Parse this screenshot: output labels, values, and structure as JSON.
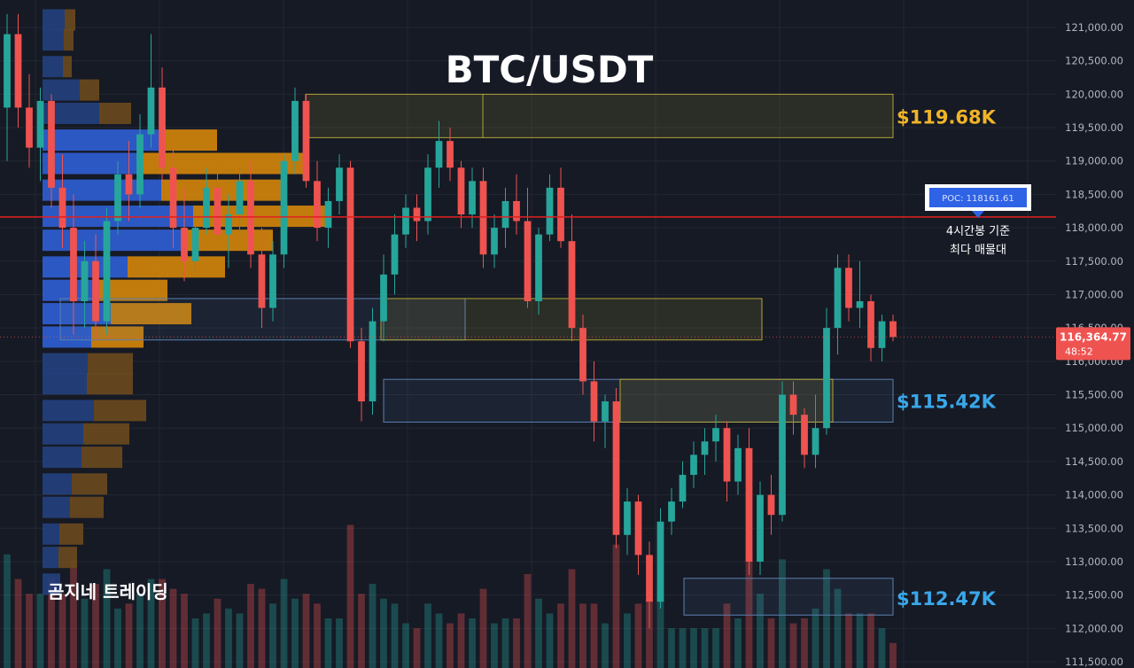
{
  "title": "BTC/USDT",
  "watermark": "곰지네 트레이딩",
  "colors": {
    "background": "#161a25",
    "up": "#26a69a",
    "down": "#ef5350",
    "grid": "#232733",
    "axis_text": "#b2b5be",
    "poc_line": "#e02020",
    "vp_blue": "#2f5fd6",
    "vp_blue_dim": "#24407e",
    "vp_orange": "#d4860b",
    "vp_orange_dim": "#6a4a1e",
    "zone_yellow": "#b3a336",
    "zone_blue": "#5a7fae",
    "label_gold": "#f0b428",
    "label_blue": "#3aa7ea"
  },
  "axis": {
    "ticks": [
      "121,000.00",
      "120,500.00",
      "120,000.00",
      "119,500.00",
      "119,000.00",
      "118,500.00",
      "118,000.00",
      "117,500.00",
      "117,000.00",
      "116,500.00",
      "116,000.00",
      "115,500.00",
      "115,000.00",
      "114,500.00",
      "114,000.00",
      "113,500.00",
      "113,000.00",
      "112,500.00",
      "112,000.00",
      "111,500.00"
    ]
  },
  "price_tag": {
    "price": "116,364.77",
    "countdown": "48:52"
  },
  "poc": {
    "label": "POC: 118161.61",
    "note_line1": "4시간봉 기준",
    "note_line2": "최다 매물대"
  },
  "levels": [
    {
      "text": "$119.68K",
      "color_key": "label_gold"
    },
    {
      "text": "$115.42K",
      "color_key": "label_blue"
    },
    {
      "text": "$112.47K",
      "color_key": "label_blue"
    }
  ],
  "chart_data": {
    "type": "candlestick",
    "symbol": "BTC/USDT",
    "y_range": [
      111500,
      121200
    ],
    "last_price": 116364.77,
    "poc_price": 118161.61,
    "price_levels": [
      119680,
      115420,
      112470
    ],
    "zones": [
      {
        "kind": "supply",
        "price_low": 119350,
        "price_high": 120000
      },
      {
        "kind": "demand",
        "price_low": 116320,
        "price_high": 116940
      },
      {
        "kind": "supply",
        "price_low": 116320,
        "price_high": 116940
      },
      {
        "kind": "demand",
        "price_low": 115090,
        "price_high": 115730
      },
      {
        "kind": "supply",
        "price_low": 115090,
        "price_high": 115730
      },
      {
        "kind": "demand",
        "price_low": 112200,
        "price_high": 112750
      }
    ],
    "volume_profile": [
      {
        "price": 121100,
        "buy": 250,
        "sell": 120
      },
      {
        "price": 120800,
        "buy": 240,
        "sell": 110
      },
      {
        "price": 120400,
        "buy": 230,
        "sell": 100
      },
      {
        "price": 120050,
        "buy": 420,
        "sell": 220
      },
      {
        "price": 119700,
        "buy": 640,
        "sell": 360
      },
      {
        "price": 119300,
        "buy": 1330,
        "sell": 640
      },
      {
        "price": 118950,
        "buy": 1070,
        "sell": 1900
      },
      {
        "price": 118550,
        "buy": 1340,
        "sell": 1350
      },
      {
        "price": 118160,
        "buy": 1700,
        "sell": 1500
      },
      {
        "price": 117800,
        "buy": 1600,
        "sell": 1000
      },
      {
        "price": 117400,
        "buy": 960,
        "sell": 1100
      },
      {
        "price": 117050,
        "buy": 640,
        "sell": 770
      },
      {
        "price": 116700,
        "buy": 770,
        "sell": 910
      },
      {
        "price": 116350,
        "buy": 550,
        "sell": 590
      },
      {
        "price": 115950,
        "buy": 510,
        "sell": 510
      },
      {
        "price": 115650,
        "buy": 500,
        "sell": 520
      },
      {
        "price": 115250,
        "buy": 580,
        "sell": 590
      },
      {
        "price": 114900,
        "buy": 460,
        "sell": 520
      },
      {
        "price": 114550,
        "buy": 440,
        "sell": 460
      },
      {
        "price": 114150,
        "buy": 330,
        "sell": 400
      },
      {
        "price": 113800,
        "buy": 310,
        "sell": 380
      },
      {
        "price": 113400,
        "buy": 190,
        "sell": 270
      },
      {
        "price": 113050,
        "buy": 180,
        "sell": 210
      },
      {
        "price": 112650,
        "buy": 200,
        "sell": 0
      }
    ],
    "candles": [
      {
        "o": 119800,
        "h": 121200,
        "l": 119000,
        "c": 120900
      },
      {
        "o": 120900,
        "h": 121200,
        "l": 119500,
        "c": 119800
      },
      {
        "o": 119800,
        "h": 120300,
        "l": 118900,
        "c": 119200
      },
      {
        "o": 119200,
        "h": 120100,
        "l": 118700,
        "c": 119900
      },
      {
        "o": 119900,
        "h": 120000,
        "l": 118300,
        "c": 118600
      },
      {
        "o": 118600,
        "h": 119100,
        "l": 117700,
        "c": 118000
      },
      {
        "o": 118000,
        "h": 118500,
        "l": 116400,
        "c": 116900
      },
      {
        "o": 116900,
        "h": 117800,
        "l": 116500,
        "c": 117500
      },
      {
        "o": 117500,
        "h": 117900,
        "l": 116300,
        "c": 116600
      },
      {
        "o": 116600,
        "h": 118300,
        "l": 116400,
        "c": 118100
      },
      {
        "o": 118100,
        "h": 119000,
        "l": 117900,
        "c": 118800
      },
      {
        "o": 118800,
        "h": 119300,
        "l": 118100,
        "c": 118500
      },
      {
        "o": 118500,
        "h": 119700,
        "l": 118300,
        "c": 119400
      },
      {
        "o": 119400,
        "h": 120900,
        "l": 119200,
        "c": 120100
      },
      {
        "o": 120100,
        "h": 120400,
        "l": 118700,
        "c": 118900
      },
      {
        "o": 118900,
        "h": 119200,
        "l": 117700,
        "c": 118000
      },
      {
        "o": 118000,
        "h": 118600,
        "l": 117200,
        "c": 117500
      },
      {
        "o": 117500,
        "h": 118200,
        "l": 117300,
        "c": 118000
      },
      {
        "o": 118000,
        "h": 118900,
        "l": 117900,
        "c": 118600
      },
      {
        "o": 118600,
        "h": 119000,
        "l": 117700,
        "c": 117900
      },
      {
        "o": 117900,
        "h": 118500,
        "l": 117400,
        "c": 118200
      },
      {
        "o": 118200,
        "h": 118900,
        "l": 117900,
        "c": 118700
      },
      {
        "o": 118700,
        "h": 119000,
        "l": 117400,
        "c": 117600
      },
      {
        "o": 117600,
        "h": 118000,
        "l": 116500,
        "c": 116800
      },
      {
        "o": 116800,
        "h": 117800,
        "l": 116600,
        "c": 117600
      },
      {
        "o": 117600,
        "h": 119100,
        "l": 117400,
        "c": 119000
      },
      {
        "o": 119000,
        "h": 120100,
        "l": 118800,
        "c": 119900
      },
      {
        "o": 119900,
        "h": 120000,
        "l": 118600,
        "c": 118700
      },
      {
        "o": 118700,
        "h": 119000,
        "l": 117800,
        "c": 118000
      },
      {
        "o": 118000,
        "h": 118600,
        "l": 117700,
        "c": 118400
      },
      {
        "o": 118400,
        "h": 119100,
        "l": 118200,
        "c": 118900
      },
      {
        "o": 118900,
        "h": 119000,
        "l": 116200,
        "c": 116300
      },
      {
        "o": 116300,
        "h": 116500,
        "l": 115100,
        "c": 115400
      },
      {
        "o": 115400,
        "h": 116800,
        "l": 115200,
        "c": 116600
      },
      {
        "o": 116600,
        "h": 117600,
        "l": 116300,
        "c": 117300
      },
      {
        "o": 117300,
        "h": 118200,
        "l": 117000,
        "c": 117900
      },
      {
        "o": 117900,
        "h": 118500,
        "l": 117700,
        "c": 118300
      },
      {
        "o": 118300,
        "h": 118500,
        "l": 117800,
        "c": 118100
      },
      {
        "o": 118100,
        "h": 119100,
        "l": 117900,
        "c": 118900
      },
      {
        "o": 118900,
        "h": 119600,
        "l": 118600,
        "c": 119300
      },
      {
        "o": 119300,
        "h": 119500,
        "l": 118700,
        "c": 118900
      },
      {
        "o": 118900,
        "h": 119000,
        "l": 118000,
        "c": 118200
      },
      {
        "o": 118200,
        "h": 118900,
        "l": 118000,
        "c": 118700
      },
      {
        "o": 118700,
        "h": 118900,
        "l": 117400,
        "c": 117600
      },
      {
        "o": 117600,
        "h": 118200,
        "l": 117400,
        "c": 118000
      },
      {
        "o": 118000,
        "h": 118600,
        "l": 117700,
        "c": 118400
      },
      {
        "o": 118400,
        "h": 118800,
        "l": 117900,
        "c": 118100
      },
      {
        "o": 118100,
        "h": 118600,
        "l": 116800,
        "c": 116900
      },
      {
        "o": 116900,
        "h": 118000,
        "l": 116700,
        "c": 117900
      },
      {
        "o": 117900,
        "h": 118800,
        "l": 117800,
        "c": 118600
      },
      {
        "o": 118600,
        "h": 118900,
        "l": 117700,
        "c": 117800
      },
      {
        "o": 117800,
        "h": 118200,
        "l": 116300,
        "c": 116500
      },
      {
        "o": 116500,
        "h": 116700,
        "l": 115500,
        "c": 115700
      },
      {
        "o": 115700,
        "h": 116000,
        "l": 114800,
        "c": 115100
      },
      {
        "o": 115100,
        "h": 115500,
        "l": 114700,
        "c": 115400
      },
      {
        "o": 115400,
        "h": 115600,
        "l": 113200,
        "c": 113400
      },
      {
        "o": 113400,
        "h": 114100,
        "l": 113100,
        "c": 113900
      },
      {
        "o": 113900,
        "h": 114000,
        "l": 112800,
        "c": 113100
      },
      {
        "o": 113100,
        "h": 113300,
        "l": 112000,
        "c": 112400
      },
      {
        "o": 112400,
        "h": 113800,
        "l": 112300,
        "c": 113600
      },
      {
        "o": 113600,
        "h": 114100,
        "l": 113400,
        "c": 113900
      },
      {
        "o": 113900,
        "h": 114500,
        "l": 113800,
        "c": 114300
      },
      {
        "o": 114300,
        "h": 114800,
        "l": 114100,
        "c": 114600
      },
      {
        "o": 114600,
        "h": 115000,
        "l": 114300,
        "c": 114800
      },
      {
        "o": 114800,
        "h": 115200,
        "l": 114500,
        "c": 115000
      },
      {
        "o": 115000,
        "h": 115100,
        "l": 113900,
        "c": 114200
      },
      {
        "o": 114200,
        "h": 114900,
        "l": 114000,
        "c": 114700
      },
      {
        "o": 114700,
        "h": 115000,
        "l": 112800,
        "c": 113000
      },
      {
        "o": 113000,
        "h": 114200,
        "l": 112800,
        "c": 114000
      },
      {
        "o": 114000,
        "h": 114300,
        "l": 113400,
        "c": 113700
      },
      {
        "o": 113700,
        "h": 115700,
        "l": 113600,
        "c": 115500
      },
      {
        "o": 115500,
        "h": 115700,
        "l": 114900,
        "c": 115200
      },
      {
        "o": 115200,
        "h": 115300,
        "l": 114400,
        "c": 114600
      },
      {
        "o": 114600,
        "h": 115500,
        "l": 114400,
        "c": 115000
      },
      {
        "o": 115000,
        "h": 116800,
        "l": 114900,
        "c": 116500
      },
      {
        "o": 116500,
        "h": 117600,
        "l": 116100,
        "c": 117400
      },
      {
        "o": 117400,
        "h": 117600,
        "l": 116600,
        "c": 116800
      },
      {
        "o": 116800,
        "h": 117500,
        "l": 116500,
        "c": 116900
      },
      {
        "o": 116900,
        "h": 117000,
        "l": 116000,
        "c": 116200
      },
      {
        "o": 116200,
        "h": 116700,
        "l": 116000,
        "c": 116600
      },
      {
        "o": 116600,
        "h": 116700,
        "l": 116300,
        "c": 116364.77
      }
    ]
  }
}
